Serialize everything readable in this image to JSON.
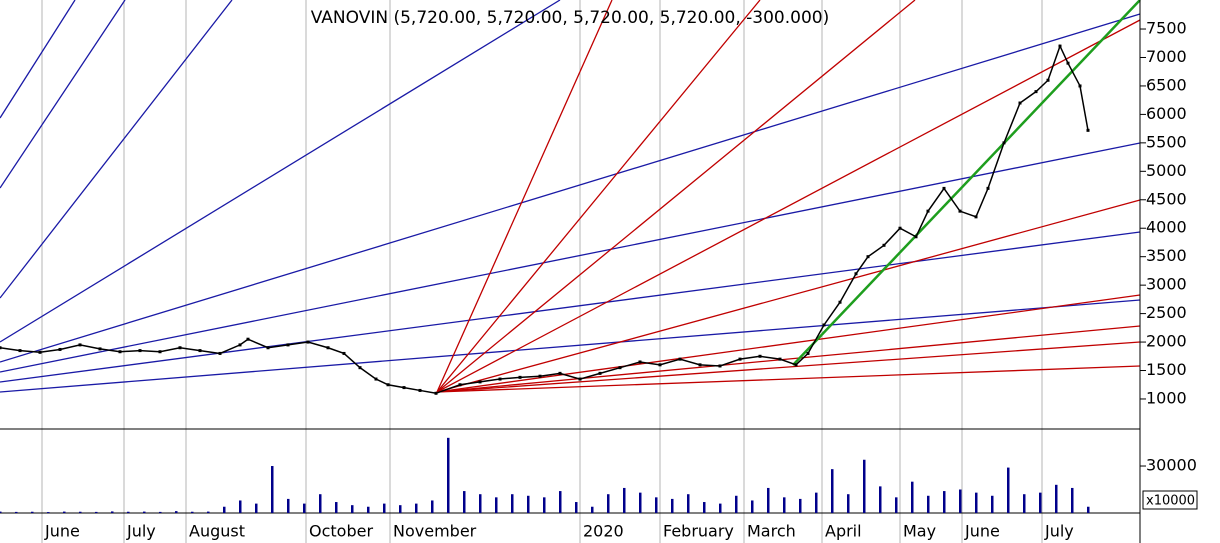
{
  "chart_data": [
    {
      "type": "line",
      "title": "VANOVIN (5,720.00, 5,720.00, 5,720.00, 5,720.00, -300.000)",
      "color": "#000000",
      "x": [
        0,
        5,
        10,
        15,
        20,
        25,
        30,
        35,
        40,
        45,
        50,
        55,
        60,
        62,
        67,
        72,
        77,
        82,
        86,
        90,
        94,
        97,
        101,
        105,
        109,
        115,
        120,
        125,
        130,
        135,
        140,
        145,
        150,
        155,
        160,
        165,
        170,
        175,
        180,
        185,
        190,
        195,
        199,
        202,
        206,
        210,
        214,
        217,
        221,
        225,
        229,
        232,
        236,
        240,
        244,
        247,
        251,
        255,
        259,
        262,
        265,
        267,
        270,
        272
      ],
      "values": [
        1900,
        1850,
        1820,
        1870,
        1950,
        1880,
        1830,
        1850,
        1830,
        1900,
        1850,
        1800,
        1950,
        2050,
        1900,
        1950,
        2000,
        1900,
        1800,
        1550,
        1350,
        1250,
        1200,
        1150,
        1100,
        1250,
        1300,
        1350,
        1380,
        1400,
        1450,
        1350,
        1450,
        1550,
        1650,
        1600,
        1700,
        1600,
        1580,
        1700,
        1750,
        1700,
        1600,
        1800,
        2300,
        2700,
        3200,
        3500,
        3700,
        4000,
        3850,
        4300,
        4700,
        4300,
        4200,
        4700,
        5500,
        6200,
        6400,
        6600,
        7200,
        6900,
        6500,
        5720
      ],
      "xlim": [
        0,
        285
      ],
      "ylim": [
        490,
        8010
      ],
      "yticks": [
        1000,
        1500,
        2000,
        2500,
        3000,
        3500,
        4000,
        4500,
        5000,
        5500,
        6000,
        6500,
        7000,
        7500
      ]
    },
    {
      "type": "bar",
      "color": "#00008b",
      "multiplier_label": "x10000",
      "x": [
        0,
        4,
        8,
        12,
        16,
        20,
        24,
        28,
        32,
        36,
        40,
        44,
        48,
        52,
        56,
        60,
        64,
        68,
        72,
        76,
        80,
        84,
        88,
        92,
        96,
        100,
        104,
        108,
        112,
        116,
        120,
        124,
        128,
        132,
        136,
        140,
        144,
        148,
        152,
        156,
        160,
        164,
        168,
        172,
        176,
        180,
        184,
        188,
        192,
        196,
        200,
        204,
        208,
        212,
        216,
        220,
        224,
        228,
        232,
        236,
        240,
        244,
        248,
        252,
        256,
        260,
        264,
        268,
        272
      ],
      "values": [
        900,
        700,
        800,
        600,
        900,
        800,
        700,
        1000,
        800,
        900,
        700,
        1200,
        800,
        900,
        4000,
        8000,
        6000,
        30000,
        9000,
        6000,
        12000,
        7000,
        5000,
        4000,
        6000,
        5000,
        6000,
        8000,
        48000,
        14000,
        12000,
        10000,
        12000,
        11000,
        10000,
        14000,
        7000,
        4000,
        12000,
        16000,
        13000,
        10000,
        9000,
        12000,
        7000,
        6000,
        11000,
        8000,
        16000,
        10000,
        9000,
        13000,
        28000,
        12000,
        34000,
        17000,
        10000,
        20000,
        11000,
        14000,
        15000,
        13000,
        11000,
        29000,
        12000,
        13000,
        18000,
        16000,
        4000
      ],
      "xlim": [
        0,
        285
      ],
      "ylim": [
        0,
        53000
      ],
      "yticks": [
        30000
      ],
      "xticks": [
        {
          "value": 10.5,
          "label": "June"
        },
        {
          "value": 31,
          "label": "July"
        },
        {
          "value": 46.5,
          "label": "August"
        },
        {
          "value": 76.5,
          "label": "October"
        },
        {
          "value": 97.5,
          "label": "November"
        },
        {
          "value": 145,
          "label": "2020"
        },
        {
          "value": 165,
          "label": "February"
        },
        {
          "value": 186,
          "label": "March"
        },
        {
          "value": 205.5,
          "label": "April"
        },
        {
          "value": 225,
          "label": "May"
        },
        {
          "value": 240.5,
          "label": "June"
        },
        {
          "value": 260.5,
          "label": "July"
        }
      ]
    }
  ]
}
